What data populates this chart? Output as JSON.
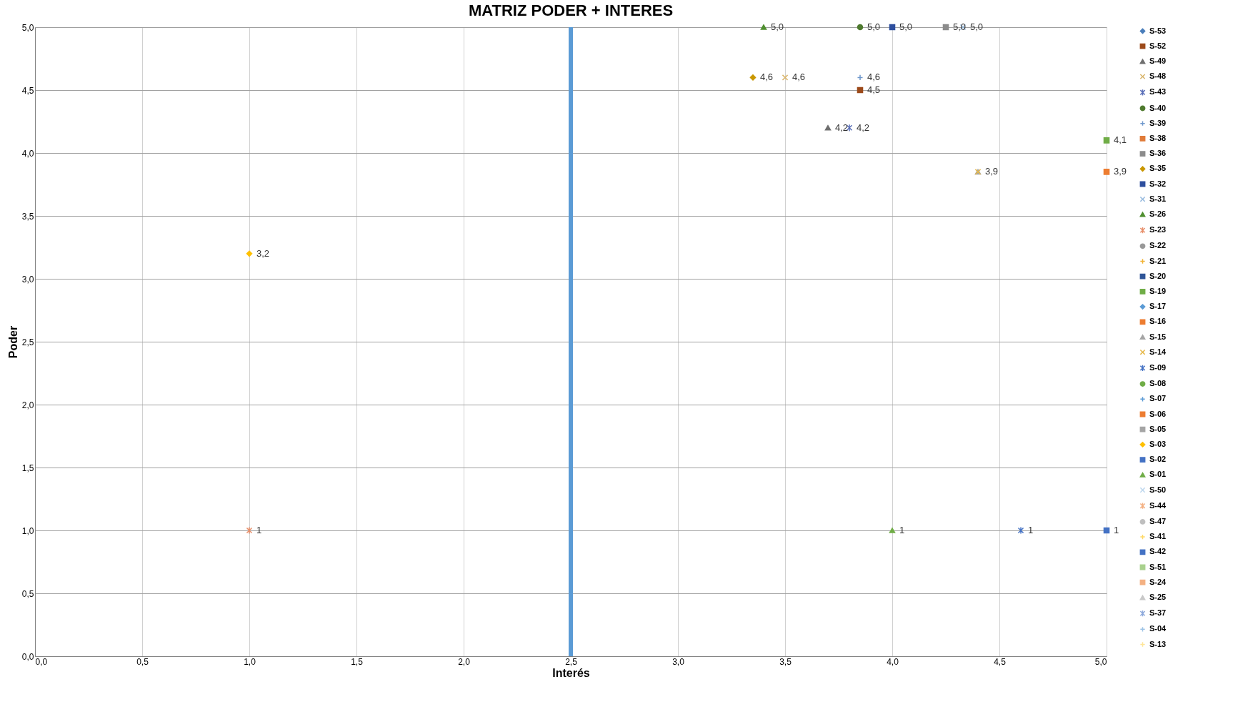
{
  "chart_data": {
    "type": "scatter",
    "title": "MATRIZ PODER + INTERES",
    "xlabel": "Interés",
    "ylabel": "Poder",
    "xlim": [
      0,
      5
    ],
    "ylim": [
      0,
      5
    ],
    "xticks": [
      {
        "value": 0,
        "label": "0,0"
      },
      {
        "value": 0.5,
        "label": "0,5"
      },
      {
        "value": 1,
        "label": "1,0"
      },
      {
        "value": 1.5,
        "label": "1,5"
      },
      {
        "value": 2,
        "label": "2,0"
      },
      {
        "value": 2.5,
        "label": "2,5"
      },
      {
        "value": 3,
        "label": "3,0"
      },
      {
        "value": 3.5,
        "label": "3,5"
      },
      {
        "value": 4,
        "label": "4,0"
      },
      {
        "value": 4.5,
        "label": "4,5"
      },
      {
        "value": 5,
        "label": "5,0"
      }
    ],
    "yticks": [
      {
        "value": 0,
        "label": "0,0"
      },
      {
        "value": 0.5,
        "label": "0,5"
      },
      {
        "value": 1,
        "label": "1,0"
      },
      {
        "value": 1.5,
        "label": "1,5"
      },
      {
        "value": 2,
        "label": "2,0"
      },
      {
        "value": 2.5,
        "label": "2,5"
      },
      {
        "value": 3,
        "label": "3,0"
      },
      {
        "value": 3.5,
        "label": "3,5"
      },
      {
        "value": 4,
        "label": "4,0"
      },
      {
        "value": 4.5,
        "label": "4,5"
      },
      {
        "value": 5,
        "label": "5,0"
      }
    ],
    "grid": true,
    "legend": "right",
    "ref_lines": [
      {
        "axis": "x",
        "value": 2.5,
        "color": "#5b9bd5"
      }
    ],
    "series": [
      {
        "name": "S-53",
        "color": "#4a7ebb",
        "marker": "diamond",
        "x": [
          null
        ],
        "values": [
          null
        ]
      },
      {
        "name": "S-52",
        "color": "#9c4a1a",
        "marker": "square",
        "x": [
          3.85
        ],
        "values": [
          4.5
        ],
        "value_labels": [
          "4,5"
        ]
      },
      {
        "name": "S-49",
        "color": "#6f6f6f",
        "marker": "triangle",
        "x": [
          3.7
        ],
        "values": [
          4.2
        ],
        "value_labels": [
          "4,2"
        ]
      },
      {
        "name": "S-48",
        "color": "#d9b56b",
        "marker": "x",
        "x": [
          3.5
        ],
        "values": [
          4.6
        ],
        "value_labels": [
          "4,6"
        ]
      },
      {
        "name": "S-43",
        "color": "#5a6fb8",
        "marker": "cross",
        "x": [
          3.8
        ],
        "values": [
          4.2
        ],
        "value_labels": [
          "4,2"
        ]
      },
      {
        "name": "S-40",
        "color": "#4e7a2e",
        "marker": "circle",
        "x": [
          3.85
        ],
        "values": [
          5.0
        ],
        "value_labels": [
          "5,0"
        ]
      },
      {
        "name": "S-39",
        "color": "#6f98cc",
        "marker": "plus",
        "x": [
          3.85
        ],
        "values": [
          4.6
        ],
        "value_labels": [
          "4,6"
        ]
      },
      {
        "name": "S-38",
        "color": "#e07b39",
        "marker": "square",
        "x": [
          null
        ],
        "values": [
          null
        ]
      },
      {
        "name": "S-36",
        "color": "#8c8c8c",
        "marker": "square",
        "x": [
          4.25
        ],
        "values": [
          5.0
        ],
        "value_labels": [
          "5,0"
        ]
      },
      {
        "name": "S-35",
        "color": "#c99700",
        "marker": "diamond",
        "x": [
          3.35
        ],
        "values": [
          4.6
        ],
        "value_labels": [
          "4,6"
        ]
      },
      {
        "name": "S-32",
        "color": "#2e4f9e",
        "marker": "square",
        "x": [
          4.0
        ],
        "values": [
          5.0
        ],
        "value_labels": [
          "5,0"
        ]
      },
      {
        "name": "S-31",
        "color": "#9bbde0",
        "marker": "x",
        "x": [
          4.33
        ],
        "values": [
          5.0
        ],
        "value_labels": [
          "5,0"
        ]
      },
      {
        "name": "S-26",
        "color": "#4f8f2f",
        "marker": "triangle",
        "x": [
          3.4
        ],
        "values": [
          5.0
        ],
        "value_labels": [
          "5,0"
        ]
      },
      {
        "name": "S-23",
        "color": "#e88f6a",
        "marker": "cross",
        "x": [
          1.0
        ],
        "values": [
          1
        ],
        "value_labels": [
          "1"
        ]
      },
      {
        "name": "S-22",
        "color": "#999999",
        "marker": "circle",
        "x": [
          null
        ],
        "values": [
          null
        ]
      },
      {
        "name": "S-21",
        "color": "#f2b233",
        "marker": "plus",
        "x": [
          null
        ],
        "values": [
          null
        ]
      },
      {
        "name": "S-20",
        "color": "#2f5597",
        "marker": "square",
        "x": [
          null
        ],
        "values": [
          null
        ]
      },
      {
        "name": "S-19",
        "color": "#70ad47",
        "marker": "square",
        "x": [
          5.0
        ],
        "values": [
          4.1
        ],
        "value_labels": [
          "4,1"
        ]
      },
      {
        "name": "S-17",
        "color": "#5b9bd5",
        "marker": "diamond",
        "x": [
          null
        ],
        "values": [
          null
        ]
      },
      {
        "name": "S-16",
        "color": "#ed7d31",
        "marker": "square",
        "x": [
          5.0
        ],
        "values": [
          3.85
        ],
        "value_labels": [
          "3,9"
        ]
      },
      {
        "name": "S-15",
        "color": "#a5a5a5",
        "marker": "triangle",
        "x": [
          4.4
        ],
        "values": [
          3.85
        ],
        "value_labels": [
          "3,9"
        ]
      },
      {
        "name": "S-14",
        "color": "#e6b94c",
        "marker": "x",
        "x": [
          4.4
        ],
        "values": [
          3.85
        ]
      },
      {
        "name": "S-09",
        "color": "#4472c4",
        "marker": "cross",
        "x": [
          4.6
        ],
        "values": [
          1
        ],
        "value_labels": [
          "1"
        ]
      },
      {
        "name": "S-08",
        "color": "#70ad47",
        "marker": "circle",
        "x": [
          null
        ],
        "values": [
          null
        ]
      },
      {
        "name": "S-07",
        "color": "#5b9bd5",
        "marker": "plus",
        "x": [
          null
        ],
        "values": [
          null
        ]
      },
      {
        "name": "S-06",
        "color": "#ed7d31",
        "marker": "square",
        "x": [
          null
        ],
        "values": [
          null
        ]
      },
      {
        "name": "S-05",
        "color": "#a5a5a5",
        "marker": "square",
        "x": [
          null
        ],
        "values": [
          null
        ]
      },
      {
        "name": "S-03",
        "color": "#ffc000",
        "marker": "diamond",
        "x": [
          1.0
        ],
        "values": [
          3.2
        ],
        "value_labels": [
          "3,2"
        ]
      },
      {
        "name": "S-02",
        "color": "#4472c4",
        "marker": "square",
        "x": [
          5.0
        ],
        "values": [
          1
        ],
        "value_labels": [
          "1"
        ]
      },
      {
        "name": "S-01",
        "color": "#70ad47",
        "marker": "triangle",
        "x": [
          4.0
        ],
        "values": [
          1
        ],
        "value_labels": [
          "1"
        ]
      },
      {
        "name": "S-50",
        "color": "#bdd7ee",
        "marker": "x",
        "x": [
          null
        ],
        "values": [
          null
        ]
      },
      {
        "name": "S-44",
        "color": "#f4b183",
        "marker": "cross",
        "x": [
          null
        ],
        "values": [
          null
        ]
      },
      {
        "name": "S-47",
        "color": "#bfbfbf",
        "marker": "circle",
        "x": [
          null
        ],
        "values": [
          null
        ]
      },
      {
        "name": "S-41",
        "color": "#ffd966",
        "marker": "plus",
        "x": [
          null
        ],
        "values": [
          null
        ]
      },
      {
        "name": "S-42",
        "color": "#4472c4",
        "marker": "square",
        "x": [
          null
        ],
        "values": [
          null
        ]
      },
      {
        "name": "S-51",
        "color": "#a9d18e",
        "marker": "square",
        "x": [
          null
        ],
        "values": [
          null
        ]
      },
      {
        "name": "S-24",
        "color": "#f4b183",
        "marker": "square",
        "x": [
          null
        ],
        "values": [
          null
        ]
      },
      {
        "name": "S-25",
        "color": "#c9c9c9",
        "marker": "triangle",
        "x": [
          null
        ],
        "values": [
          null
        ]
      },
      {
        "name": "S-37",
        "color": "#8faadc",
        "marker": "cross",
        "x": [
          null
        ],
        "values": [
          null
        ]
      },
      {
        "name": "S-04",
        "color": "#9dc3e6",
        "marker": "plus",
        "x": [
          null
        ],
        "values": [
          null
        ]
      },
      {
        "name": "S-13",
        "color": "#ffe699",
        "marker": "plus",
        "x": [
          null
        ],
        "values": [
          null
        ]
      }
    ]
  }
}
